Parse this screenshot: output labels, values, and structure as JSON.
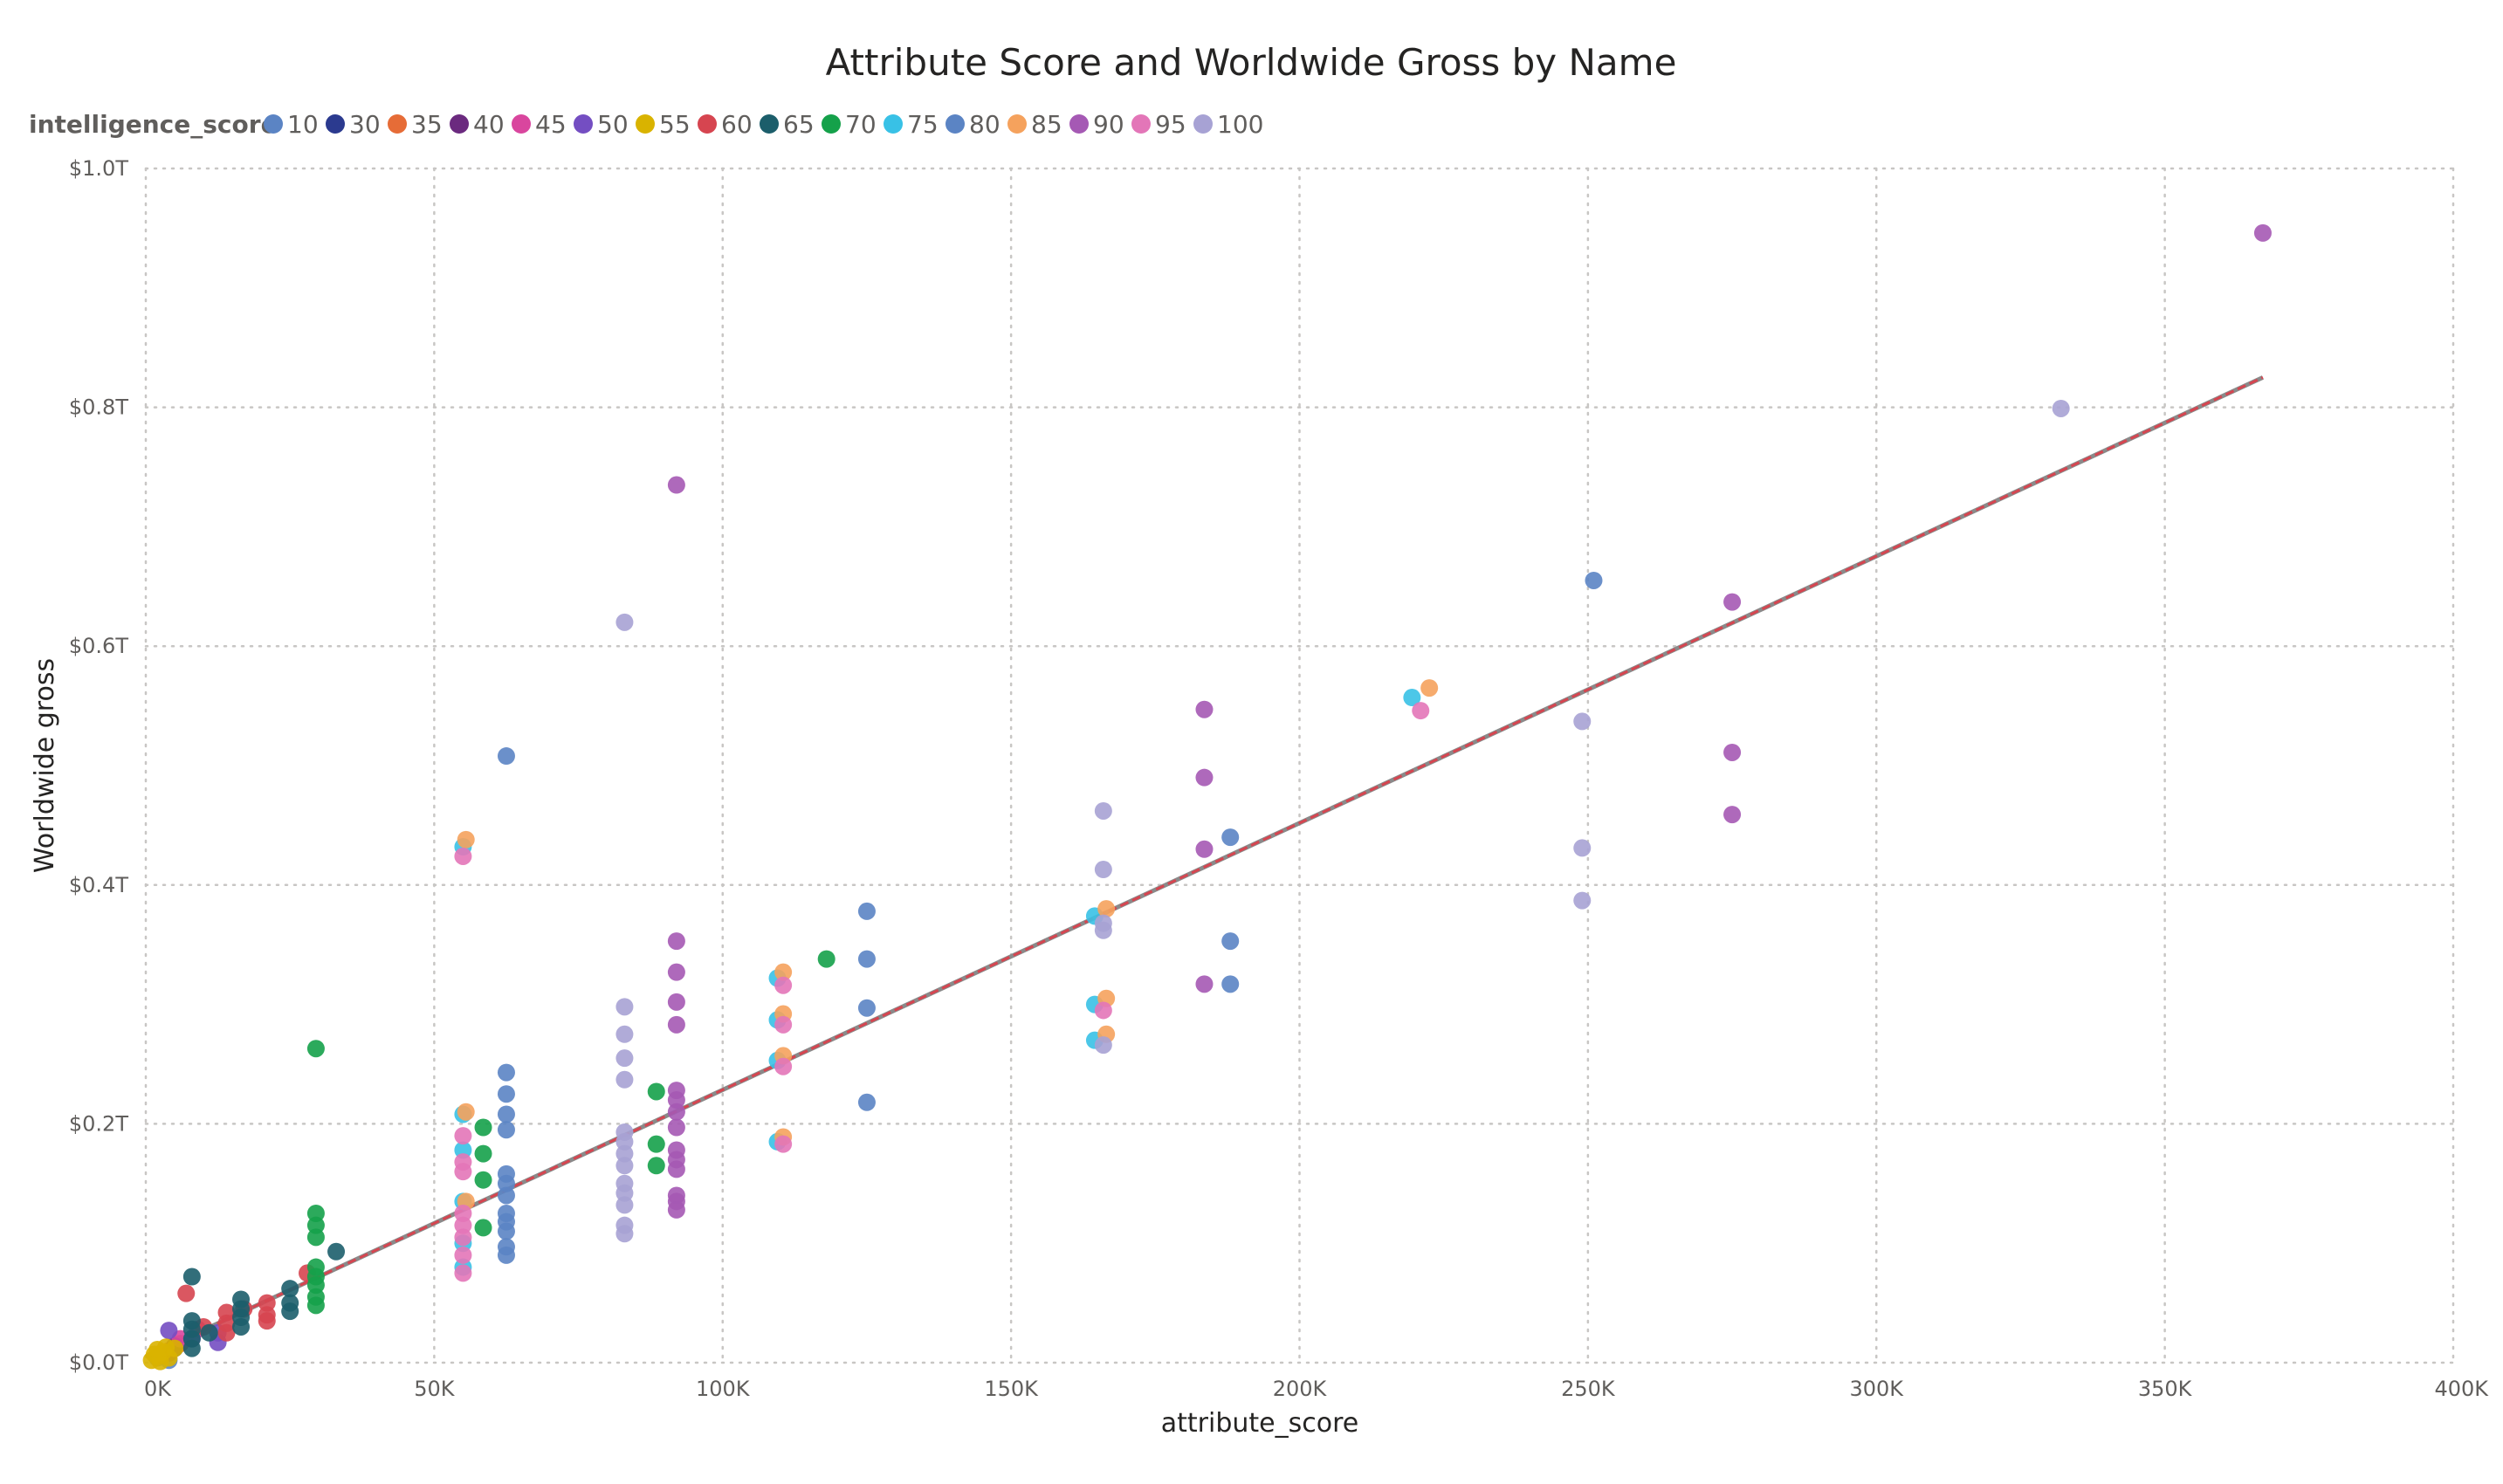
{
  "chart_data": {
    "type": "scatter",
    "title": "Attribute Score and Worldwide Gross by Name",
    "xlabel": "attribute_score",
    "ylabel": "Worldwide gross",
    "legend_title": "intelligence_score",
    "xlim": [
      0,
      400000
    ],
    "ylim": [
      0,
      1.0
    ],
    "x_ticks": [
      {
        "value": 0,
        "label": "0K"
      },
      {
        "value": 50000,
        "label": "50K"
      },
      {
        "value": 100000,
        "label": "100K"
      },
      {
        "value": 150000,
        "label": "150K"
      },
      {
        "value": 200000,
        "label": "200K"
      },
      {
        "value": 250000,
        "label": "250K"
      },
      {
        "value": 300000,
        "label": "300K"
      },
      {
        "value": 350000,
        "label": "350K"
      },
      {
        "value": 400000,
        "label": "400K"
      }
    ],
    "y_ticks": [
      {
        "value": 0,
        "label": "$0.0T"
      },
      {
        "value": 0.2,
        "label": "$0.2T"
      },
      {
        "value": 0.4,
        "label": "$0.4T"
      },
      {
        "value": 0.6,
        "label": "$0.6T"
      },
      {
        "value": 0.8,
        "label": "$0.8T"
      },
      {
        "value": 1.0,
        "label": "$1.0T"
      }
    ],
    "grid": true,
    "legend_position": "top-left",
    "trend_line": {
      "x": [
        0,
        367000
      ],
      "y": [
        0.005,
        0.825
      ],
      "color": "#d64550"
    },
    "series": [
      {
        "name": "10",
        "color": "#5b84c4",
        "points": [
          [
            2000,
            0.004
          ],
          [
            3000,
            0.008
          ],
          [
            4000,
            0.002
          ]
        ]
      },
      {
        "name": "30",
        "color": "#2b3a8f",
        "points": [
          [
            3000,
            0.006
          ],
          [
            5000,
            0.012
          ]
        ]
      },
      {
        "name": "35",
        "color": "#e66c37",
        "points": [
          [
            4000,
            0.01
          ],
          [
            6000,
            0.016
          ]
        ]
      },
      {
        "name": "40",
        "color": "#6b2a7f",
        "points": [
          [
            5000,
            0.014
          ],
          [
            4000,
            0.008
          ]
        ]
      },
      {
        "name": "45",
        "color": "#d9469e",
        "points": [
          [
            6000,
            0.02
          ],
          [
            9000,
            0.028
          ]
        ]
      },
      {
        "name": "50",
        "color": "#744ec2",
        "points": [
          [
            4000,
            0.027
          ],
          [
            12500,
            0.017
          ],
          [
            12500,
            0.025
          ],
          [
            8000,
            0.02
          ]
        ]
      },
      {
        "name": "55",
        "color": "#d9b300",
        "points": [
          [
            1000,
            0.002
          ],
          [
            2000,
            0.005
          ],
          [
            3000,
            0.009
          ],
          [
            4000,
            0.004
          ],
          [
            5000,
            0.012
          ],
          [
            1500,
            0.007
          ],
          [
            2500,
            0.001
          ],
          [
            3500,
            0.013
          ],
          [
            2000,
            0.011
          ]
        ]
      },
      {
        "name": "60",
        "color": "#d64550",
        "points": [
          [
            7000,
            0.058
          ],
          [
            14000,
            0.042
          ],
          [
            14000,
            0.033
          ],
          [
            14000,
            0.025
          ],
          [
            21000,
            0.05
          ],
          [
            21000,
            0.04
          ],
          [
            21000,
            0.035
          ],
          [
            28000,
            0.075
          ],
          [
            10000,
            0.03
          ],
          [
            17000,
            0.045
          ]
        ]
      },
      {
        "name": "65",
        "color": "#1c5e6b",
        "points": [
          [
            8000,
            0.072
          ],
          [
            8000,
            0.035
          ],
          [
            8000,
            0.028
          ],
          [
            8000,
            0.02
          ],
          [
            8000,
            0.012
          ],
          [
            16500,
            0.053
          ],
          [
            16500,
            0.045
          ],
          [
            16500,
            0.038
          ],
          [
            16500,
            0.03
          ],
          [
            25000,
            0.062
          ],
          [
            25000,
            0.05
          ],
          [
            25000,
            0.043
          ],
          [
            33000,
            0.093
          ],
          [
            11000,
            0.025
          ]
        ]
      },
      {
        "name": "70",
        "color": "#15a14a",
        "points": [
          [
            29500,
            0.263
          ],
          [
            29500,
            0.125
          ],
          [
            29500,
            0.115
          ],
          [
            29500,
            0.105
          ],
          [
            29500,
            0.08
          ],
          [
            29500,
            0.072
          ],
          [
            29500,
            0.065
          ],
          [
            29500,
            0.055
          ],
          [
            29500,
            0.048
          ],
          [
            58500,
            0.197
          ],
          [
            58500,
            0.175
          ],
          [
            58500,
            0.153
          ],
          [
            58500,
            0.113
          ],
          [
            88500,
            0.227
          ],
          [
            88500,
            0.183
          ],
          [
            88500,
            0.165
          ],
          [
            118000,
            0.338
          ]
        ]
      },
      {
        "name": "75",
        "color": "#38c1e6",
        "points": [
          [
            55000,
            0.432
          ],
          [
            55000,
            0.208
          ],
          [
            55000,
            0.178
          ],
          [
            55000,
            0.135
          ],
          [
            55000,
            0.1
          ],
          [
            55000,
            0.08
          ],
          [
            109500,
            0.322
          ],
          [
            109500,
            0.287
          ],
          [
            109500,
            0.253
          ],
          [
            109500,
            0.185
          ],
          [
            164500,
            0.374
          ],
          [
            164500,
            0.3
          ],
          [
            164500,
            0.27
          ],
          [
            219500,
            0.557
          ]
        ]
      },
      {
        "name": "80",
        "color": "#5b84c4",
        "points": [
          [
            62500,
            0.508
          ],
          [
            62500,
            0.243
          ],
          [
            62500,
            0.225
          ],
          [
            62500,
            0.208
          ],
          [
            62500,
            0.195
          ],
          [
            62500,
            0.158
          ],
          [
            62500,
            0.15
          ],
          [
            62500,
            0.14
          ],
          [
            62500,
            0.125
          ],
          [
            62500,
            0.118
          ],
          [
            62500,
            0.11
          ],
          [
            62500,
            0.097
          ],
          [
            62500,
            0.09
          ],
          [
            125000,
            0.378
          ],
          [
            125000,
            0.338
          ],
          [
            125000,
            0.297
          ],
          [
            125000,
            0.218
          ],
          [
            188000,
            0.44
          ],
          [
            188000,
            0.353
          ],
          [
            188000,
            0.317
          ],
          [
            251000,
            0.655
          ]
        ]
      },
      {
        "name": "85",
        "color": "#f5a25d",
        "points": [
          [
            55500,
            0.438
          ],
          [
            55500,
            0.21
          ],
          [
            55500,
            0.135
          ],
          [
            110500,
            0.327
          ],
          [
            110500,
            0.292
          ],
          [
            110500,
            0.257
          ],
          [
            110500,
            0.189
          ],
          [
            166500,
            0.38
          ],
          [
            166500,
            0.305
          ],
          [
            166500,
            0.275
          ],
          [
            222500,
            0.565
          ]
        ]
      },
      {
        "name": "90",
        "color": "#a559b4",
        "points": [
          [
            92000,
            0.735
          ],
          [
            92000,
            0.353
          ],
          [
            92000,
            0.327
          ],
          [
            92000,
            0.302
          ],
          [
            92000,
            0.283
          ],
          [
            92000,
            0.228
          ],
          [
            92000,
            0.22
          ],
          [
            92000,
            0.21
          ],
          [
            92000,
            0.197
          ],
          [
            92000,
            0.178
          ],
          [
            92000,
            0.17
          ],
          [
            92000,
            0.162
          ],
          [
            92000,
            0.14
          ],
          [
            92000,
            0.135
          ],
          [
            92000,
            0.128
          ],
          [
            183500,
            0.547
          ],
          [
            183500,
            0.49
          ],
          [
            183500,
            0.43
          ],
          [
            183500,
            0.317
          ],
          [
            275000,
            0.637
          ],
          [
            275000,
            0.511
          ],
          [
            275000,
            0.459
          ],
          [
            367000,
            0.946
          ]
        ]
      },
      {
        "name": "95",
        "color": "#e376b8",
        "points": [
          [
            55000,
            0.424
          ],
          [
            55000,
            0.19
          ],
          [
            55000,
            0.168
          ],
          [
            55000,
            0.16
          ],
          [
            55000,
            0.125
          ],
          [
            55000,
            0.115
          ],
          [
            55000,
            0.105
          ],
          [
            55000,
            0.09
          ],
          [
            55000,
            0.075
          ],
          [
            110500,
            0.316
          ],
          [
            110500,
            0.283
          ],
          [
            110500,
            0.248
          ],
          [
            110500,
            0.183
          ],
          [
            166000,
            0.295
          ],
          [
            221000,
            0.546
          ]
        ]
      },
      {
        "name": "100",
        "color": "#a7a2d4",
        "points": [
          [
            83000,
            0.62
          ],
          [
            83000,
            0.298
          ],
          [
            83000,
            0.275
          ],
          [
            83000,
            0.255
          ],
          [
            83000,
            0.237
          ],
          [
            83000,
            0.193
          ],
          [
            83000,
            0.185
          ],
          [
            83000,
            0.175
          ],
          [
            83000,
            0.165
          ],
          [
            83000,
            0.15
          ],
          [
            83000,
            0.142
          ],
          [
            83000,
            0.132
          ],
          [
            83000,
            0.115
          ],
          [
            83000,
            0.108
          ],
          [
            166000,
            0.462
          ],
          [
            166000,
            0.413
          ],
          [
            166000,
            0.368
          ],
          [
            166000,
            0.362
          ],
          [
            166000,
            0.266
          ],
          [
            249000,
            0.537
          ],
          [
            249000,
            0.431
          ],
          [
            249000,
            0.387
          ],
          [
            332000,
            0.799
          ]
        ]
      }
    ]
  }
}
